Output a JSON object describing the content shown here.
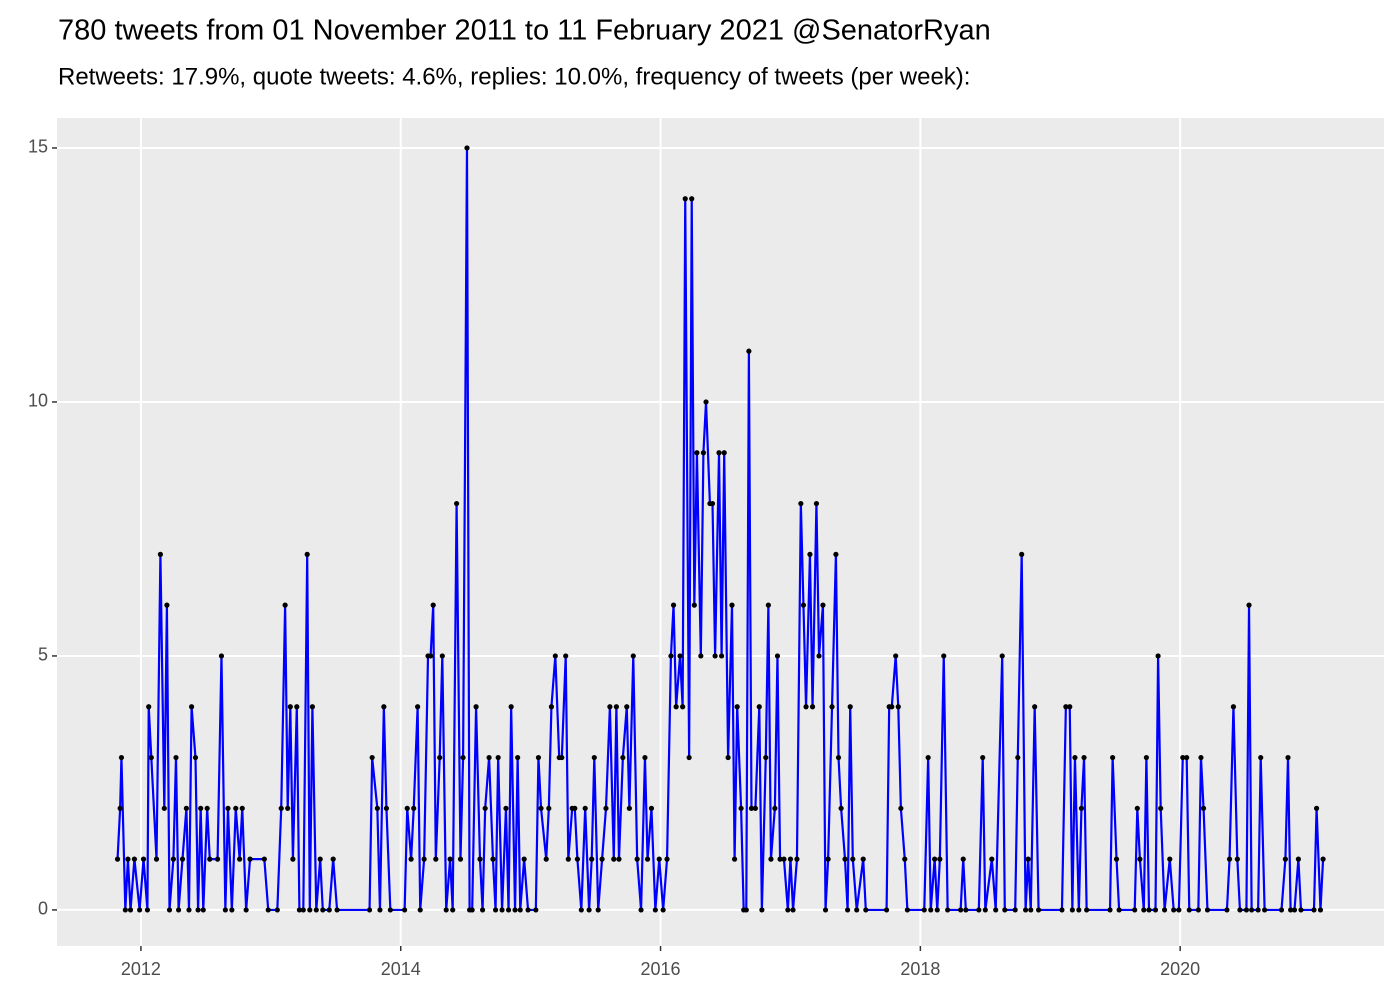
{
  "chart_data": {
    "type": "line",
    "title": "780 tweets from 01 November 2011 to 11 February 2021 @SenatorRyan",
    "subtitle": "Retweets: 17.9%, quote tweets: 4.6%, replies: 10.0%, frequency of tweets (per week):",
    "x": [
      2011.82,
      2011.84,
      2011.85,
      2011.88,
      2011.9,
      2011.92,
      2011.95,
      2011.99,
      2012.02,
      2012.05,
      2012.06,
      2012.08,
      2012.12,
      2012.15,
      2012.18,
      2012.2,
      2012.22,
      2012.25,
      2012.27,
      2012.29,
      2012.32,
      2012.35,
      2012.37,
      2012.39,
      2012.42,
      2012.44,
      2012.46,
      2012.48,
      2012.51,
      2012.53,
      2012.59,
      2012.62,
      2012.65,
      2012.67,
      2012.7,
      2012.73,
      2012.76,
      2012.78,
      2012.81,
      2012.84,
      2012.95,
      2012.98,
      2013.05,
      2013.08,
      2013.11,
      2013.13,
      2013.15,
      2013.17,
      2013.2,
      2013.22,
      2013.25,
      2013.28,
      2013.3,
      2013.32,
      2013.35,
      2013.38,
      2013.4,
      2013.45,
      2013.48,
      2013.51,
      2013.76,
      2013.78,
      2013.82,
      2013.84,
      2013.87,
      2013.89,
      2013.92,
      2014.03,
      2014.05,
      2014.08,
      2014.1,
      2014.13,
      2014.15,
      2014.18,
      2014.21,
      2014.23,
      2014.25,
      2014.27,
      2014.3,
      2014.32,
      2014.35,
      2014.38,
      2014.4,
      2014.43,
      2014.46,
      2014.48,
      2014.51,
      2014.53,
      2014.55,
      2014.58,
      2014.61,
      2014.63,
      2014.65,
      2014.68,
      2014.71,
      2014.73,
      2014.75,
      2014.78,
      2014.81,
      2014.83,
      2014.85,
      2014.88,
      2014.9,
      2014.92,
      2014.95,
      2014.98,
      2015.04,
      2015.06,
      2015.08,
      2015.12,
      2015.14,
      2015.16,
      2015.19,
      2015.22,
      2015.24,
      2015.27,
      2015.29,
      2015.32,
      2015.34,
      2015.36,
      2015.39,
      2015.42,
      2015.45,
      2015.47,
      2015.49,
      2015.52,
      2015.55,
      2015.58,
      2015.61,
      2015.64,
      2015.66,
      2015.68,
      2015.71,
      2015.74,
      2015.76,
      2015.79,
      2015.82,
      2015.85,
      2015.88,
      2015.9,
      2015.93,
      2015.96,
      2015.99,
      2016.02,
      2016.05,
      2016.08,
      2016.1,
      2016.12,
      2016.15,
      2016.17,
      2016.19,
      2016.22,
      2016.24,
      2016.26,
      2016.28,
      2016.31,
      2016.33,
      2016.35,
      2016.38,
      2016.4,
      2016.42,
      2016.45,
      2016.47,
      2016.49,
      2016.52,
      2016.55,
      2016.57,
      2016.59,
      2016.62,
      2016.64,
      2016.66,
      2016.68,
      2016.7,
      2016.73,
      2016.76,
      2016.78,
      2016.81,
      2016.83,
      2016.85,
      2016.88,
      2016.9,
      2016.92,
      2016.95,
      2016.98,
      2017.0,
      2017.02,
      2017.05,
      2017.08,
      2017.1,
      2017.12,
      2017.15,
      2017.17,
      2017.2,
      2017.22,
      2017.25,
      2017.27,
      2017.29,
      2017.32,
      2017.35,
      2017.37,
      2017.39,
      2017.42,
      2017.44,
      2017.46,
      2017.48,
      2017.51,
      2017.56,
      2017.58,
      2017.74,
      2017.76,
      2017.78,
      2017.81,
      2017.83,
      2017.85,
      2017.88,
      2017.9,
      2018.03,
      2018.06,
      2018.08,
      2018.11,
      2018.13,
      2018.15,
      2018.18,
      2018.21,
      2018.31,
      2018.33,
      2018.35,
      2018.45,
      2018.48,
      2018.5,
      2018.55,
      2018.58,
      2018.63,
      2018.65,
      2018.73,
      2018.75,
      2018.78,
      2018.81,
      2018.83,
      2018.85,
      2018.88,
      2018.91,
      2019.09,
      2019.12,
      2019.15,
      2019.17,
      2019.19,
      2019.22,
      2019.24,
      2019.26,
      2019.28,
      2019.46,
      2019.48,
      2019.51,
      2019.53,
      2019.65,
      2019.67,
      2019.69,
      2019.72,
      2019.74,
      2019.76,
      2019.81,
      2019.83,
      2019.85,
      2019.88,
      2019.92,
      2019.95,
      2019.99,
      2020.02,
      2020.05,
      2020.07,
      2020.14,
      2020.16,
      2020.18,
      2020.21,
      2020.36,
      2020.38,
      2020.41,
      2020.44,
      2020.46,
      2020.51,
      2020.53,
      2020.55,
      2020.6,
      2020.62,
      2020.65,
      2020.78,
      2020.81,
      2020.83,
      2020.85,
      2020.88,
      2020.91,
      2020.93,
      2021.03,
      2021.05,
      2021.08,
      2021.1
    ],
    "series": [
      {
        "color": "#0000ff",
        "point_color": "#000000",
        "values": [
          1,
          2,
          3,
          0,
          1,
          0,
          1,
          0,
          1,
          0,
          4,
          3,
          1,
          7,
          2,
          6,
          0,
          1,
          3,
          0,
          1,
          2,
          0,
          4,
          3,
          0,
          2,
          0,
          2,
          1,
          1,
          5,
          0,
          2,
          0,
          2,
          1,
          2,
          0,
          1,
          1,
          0,
          0,
          2,
          6,
          2,
          4,
          1,
          4,
          0,
          0,
          7,
          0,
          4,
          0,
          1,
          0,
          0,
          1,
          0,
          0,
          3,
          2,
          0,
          4,
          2,
          0,
          0,
          2,
          1,
          2,
          4,
          0,
          1,
          5,
          5,
          6,
          1,
          3,
          5,
          0,
          1,
          0,
          8,
          1,
          3,
          15,
          0,
          0,
          4,
          1,
          0,
          2,
          3,
          1,
          0,
          3,
          0,
          2,
          0,
          4,
          0,
          3,
          0,
          1,
          0,
          0,
          3,
          2,
          1,
          2,
          4,
          5,
          3,
          3,
          5,
          1,
          2,
          2,
          1,
          0,
          2,
          0,
          1,
          3,
          0,
          1,
          2,
          4,
          1,
          4,
          1,
          3,
          4,
          2,
          5,
          1,
          0,
          3,
          1,
          2,
          0,
          1,
          0,
          1,
          5,
          6,
          4,
          5,
          4,
          14,
          3,
          14,
          6,
          9,
          5,
          9,
          10,
          8,
          8,
          5,
          9,
          5,
          9,
          3,
          6,
          1,
          4,
          2,
          0,
          0,
          11,
          2,
          2,
          4,
          0,
          3,
          6,
          1,
          2,
          5,
          1,
          1,
          0,
          1,
          0,
          1,
          8,
          6,
          4,
          7,
          4,
          8,
          5,
          6,
          0,
          1,
          4,
          7,
          3,
          2,
          1,
          0,
          4,
          1,
          0,
          1,
          0,
          0,
          4,
          4,
          5,
          4,
          2,
          1,
          0,
          0,
          3,
          0,
          1,
          0,
          1,
          5,
          0,
          0,
          1,
          0,
          0,
          3,
          0,
          1,
          0,
          5,
          0,
          0,
          3,
          7,
          0,
          1,
          0,
          4,
          0,
          0,
          4,
          4,
          0,
          3,
          0,
          2,
          3,
          0,
          0,
          3,
          1,
          0,
          0,
          2,
          1,
          0,
          3,
          0,
          0,
          5,
          2,
          0,
          1,
          0,
          0,
          3,
          3,
          0,
          0,
          3,
          2,
          0,
          0,
          1,
          4,
          1,
          0,
          0,
          6,
          0,
          0,
          3,
          0,
          0,
          1,
          3,
          0,
          0,
          1,
          0,
          0,
          2,
          0,
          1
        ]
      }
    ],
    "xlim": [
      2011.354,
      2021.569
    ],
    "xticks": [
      2012,
      2014,
      2016,
      2018,
      2020
    ],
    "ylim": [
      -0.71,
      15.59
    ],
    "yticks": [
      0,
      5,
      10,
      15
    ],
    "grid": true
  }
}
